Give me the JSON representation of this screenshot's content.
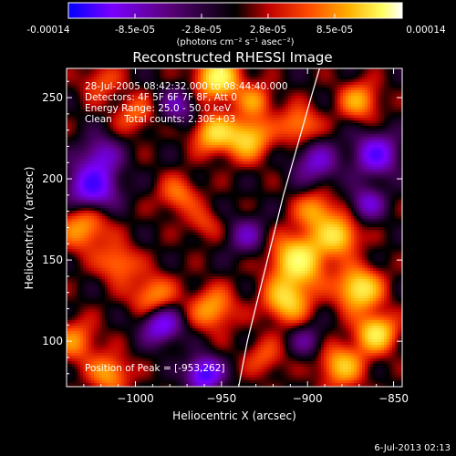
{
  "colorbar": {
    "tick_labels": [
      "-0.00014",
      "-8.5e-05",
      "-2.8e-05",
      "2.8e-05",
      "8.5e-05",
      "0.00014"
    ],
    "unit_label": "(photons cm⁻² s⁻¹ asec⁻²)",
    "colors": [
      "#0000ff",
      "#7a00ff",
      "#5a007a",
      "#000000",
      "#c00000",
      "#ff4a00",
      "#ffb000",
      "#ffff60",
      "#ffffff"
    ]
  },
  "image": {
    "title": "Reconstructed RHESSI Image",
    "info": [
      "28-Jul-2005 08:42:32.000 to 08:44:40.000",
      "Detectors: 4F 5F 6F 7F 8F, Att 0",
      "Energy Range: 25.0 - 50.0 keV",
      "Clean    Total counts: 2.30E+03"
    ],
    "peak_label": "Position of Peak = [-953,262]"
  },
  "footer": {
    "timestamp": "6-Jul-2013 02:13"
  },
  "chart_data": {
    "type": "heatmap",
    "title": "Reconstructed RHESSI Image",
    "xlabel": "Heliocentric X (arcsec)",
    "ylabel": "Heliocentric Y (arcsec)",
    "xlim": [
      -1040,
      -845
    ],
    "ylim": [
      72,
      268
    ],
    "x_ticks": [
      -1000,
      -950,
      -900,
      -850
    ],
    "x_tick_labels": [
      "−1000",
      "−950",
      "−900",
      "−850"
    ],
    "y_ticks": [
      100,
      150,
      200,
      250
    ],
    "y_tick_labels": [
      "100",
      "150",
      "200",
      "250"
    ],
    "colorbar_range": [
      -0.00014,
      0.00014
    ],
    "peak": [
      -953,
      262
    ],
    "limb_curve": [
      [
        -940,
        72
      ],
      [
        -935,
        100
      ],
      [
        -928,
        130
      ],
      [
        -921,
        160
      ],
      [
        -914,
        190
      ],
      [
        -906,
        220
      ],
      [
        -898,
        250
      ],
      [
        -893,
        268
      ]
    ],
    "grid": false,
    "hotspots": [
      {
        "x": -952,
        "y": 262,
        "v": 1.0,
        "s": 9
      },
      {
        "x": -905,
        "y": 150,
        "v": 1.0,
        "s": 11
      },
      {
        "x": -912,
        "y": 125,
        "v": 0.8,
        "s": 9
      },
      {
        "x": -870,
        "y": 132,
        "v": 0.95,
        "s": 9
      },
      {
        "x": -860,
        "y": 105,
        "v": 0.9,
        "s": 8
      },
      {
        "x": -880,
        "y": 85,
        "v": 0.7,
        "s": 9
      },
      {
        "x": -882,
        "y": 165,
        "v": 0.8,
        "s": 8
      },
      {
        "x": -895,
        "y": 180,
        "v": 0.6,
        "s": 8
      },
      {
        "x": -935,
        "y": 225,
        "v": 0.8,
        "s": 9
      },
      {
        "x": -955,
        "y": 228,
        "v": 0.75,
        "s": 8
      },
      {
        "x": -905,
        "y": 233,
        "v": 0.55,
        "s": 8
      },
      {
        "x": -870,
        "y": 248,
        "v": 0.6,
        "s": 8
      },
      {
        "x": -930,
        "y": 248,
        "v": 0.5,
        "s": 7
      },
      {
        "x": -1030,
        "y": 170,
        "v": 0.6,
        "s": 10
      },
      {
        "x": -1010,
        "y": 148,
        "v": 0.5,
        "s": 8
      },
      {
        "x": -1035,
        "y": 100,
        "v": 0.5,
        "s": 9
      },
      {
        "x": -1015,
        "y": 80,
        "v": 0.6,
        "s": 8
      },
      {
        "x": -990,
        "y": 128,
        "v": 0.55,
        "s": 9
      },
      {
        "x": -955,
        "y": 120,
        "v": 0.6,
        "s": 9
      },
      {
        "x": -975,
        "y": 190,
        "v": 0.45,
        "s": 8
      },
      {
        "x": -1000,
        "y": 240,
        "v": 0.4,
        "s": 8
      },
      {
        "x": -1020,
        "y": 260,
        "v": 0.35,
        "s": 8
      },
      {
        "x": -960,
        "y": 172,
        "v": 0.3,
        "s": 7
      },
      {
        "x": -925,
        "y": 90,
        "v": 0.35,
        "s": 8
      },
      {
        "x": -1025,
        "y": 195,
        "v": -0.9,
        "s": 10
      },
      {
        "x": -985,
        "y": 110,
        "v": -0.75,
        "s": 8
      },
      {
        "x": -960,
        "y": 80,
        "v": -1.0,
        "s": 7
      },
      {
        "x": -860,
        "y": 215,
        "v": -0.8,
        "s": 9
      },
      {
        "x": -895,
        "y": 210,
        "v": -0.55,
        "s": 9
      },
      {
        "x": -975,
        "y": 245,
        "v": -0.45,
        "s": 8
      },
      {
        "x": -865,
        "y": 185,
        "v": -0.55,
        "s": 7
      },
      {
        "x": -935,
        "y": 165,
        "v": -0.45,
        "s": 8
      },
      {
        "x": -1020,
        "y": 215,
        "v": -0.5,
        "s": 8
      },
      {
        "x": -900,
        "y": 100,
        "v": -0.35,
        "s": 7
      }
    ]
  }
}
